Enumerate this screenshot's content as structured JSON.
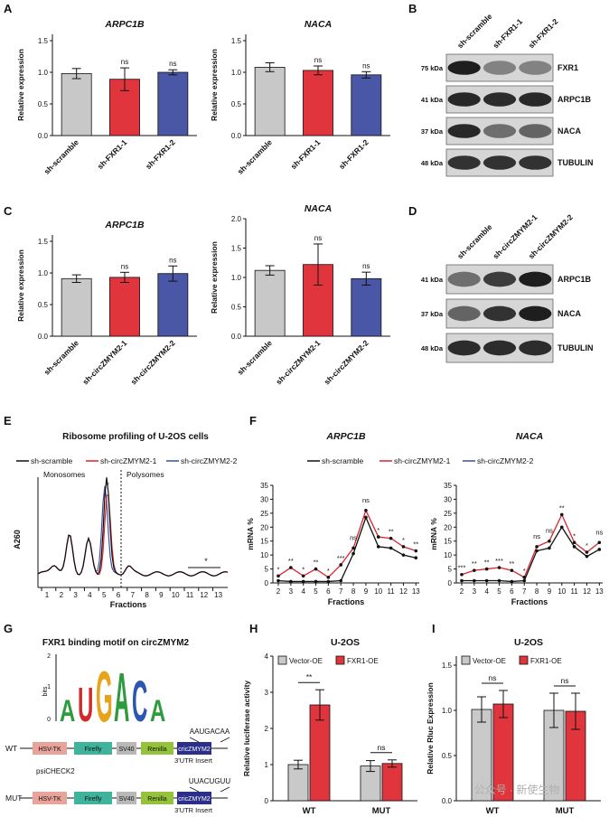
{
  "panel_letters": [
    "A",
    "B",
    "C",
    "D",
    "E",
    "F",
    "G",
    "H",
    "I"
  ],
  "colors": {
    "scramble": "#c8c8c8",
    "sh1": "#e0353d",
    "sh2": "#4a56a6",
    "line_black": "#111111",
    "line_red": "#d9262e",
    "line_blue": "#3f4fa0",
    "vector": "#c9c9c9",
    "fxr1oe": "#e0353d"
  },
  "panelA": {
    "ylabel": "Relative expression",
    "categories": [
      "sh-scramble",
      "sh-FXR1-1",
      "sh-FXR1-2"
    ],
    "arpc1b": {
      "title": "ARPC1B",
      "values": [
        0.98,
        0.89,
        1.0
      ],
      "errors": [
        0.08,
        0.18,
        0.04
      ],
      "sig": [
        "",
        "ns",
        "ns"
      ]
    },
    "naca": {
      "title": "NACA",
      "values": [
        1.08,
        1.03,
        0.96
      ],
      "errors": [
        0.07,
        0.07,
        0.05
      ],
      "sig": [
        "",
        "ns",
        "ns"
      ]
    },
    "yticks": [
      "0.0",
      "0.5",
      "1.0",
      "1.5"
    ]
  },
  "panelB": {
    "lanes": [
      "sh-scramble",
      "sh-FXR1-1",
      "sh-FXR1-2"
    ],
    "bands": [
      {
        "kda": "75 kDa",
        "name": "FXR1"
      },
      {
        "kda": "41 kDa",
        "name": "ARPC1B"
      },
      {
        "kda": "37 kDa",
        "name": "NACA"
      },
      {
        "kda": "48 kDa",
        "name": "TUBULIN"
      }
    ]
  },
  "panelC": {
    "ylabel": "Relative expression",
    "categories": [
      "sh-scramble",
      "sh-circZMYM2-1",
      "sh-circZMYM2-2"
    ],
    "arpc1b": {
      "title": "ARPC1B",
      "values": [
        0.91,
        0.93,
        0.99
      ],
      "errors": [
        0.06,
        0.08,
        0.12
      ],
      "sig": [
        "",
        "ns",
        "ns"
      ],
      "yticks": [
        "0.0",
        "0.5",
        "1.0",
        "1.5"
      ]
    },
    "naca": {
      "title": "NACA",
      "values": [
        1.12,
        1.22,
        0.98
      ],
      "errors": [
        0.08,
        0.35,
        0.11
      ],
      "sig": [
        "",
        "ns",
        "ns"
      ],
      "yticks": [
        "0.0",
        "0.5",
        "1.0",
        "1.5",
        "2.0"
      ]
    }
  },
  "panelD": {
    "lanes": [
      "sh-scramble",
      "sh-circZMYM2-1",
      "sh-circZMYM2-2"
    ],
    "bands": [
      {
        "kda": "41 kDa",
        "name": "ARPC1B"
      },
      {
        "kda": "37 kDa",
        "name": "NACA"
      },
      {
        "kda": "48 kDa",
        "name": "TUBULIN"
      }
    ]
  },
  "panelE": {
    "title": "Ribosome profiling of U-2OS cells",
    "legend": [
      "sh-scramble",
      "sh-circZMYM2-1",
      "sh-circZMYM2-2"
    ],
    "monosomes": "Monosomes",
    "polysomes": "Polysomes",
    "ylabel": "A260",
    "xlabel": "Fractions",
    "fractions": [
      "1",
      "2",
      "3",
      "4",
      "5",
      "6",
      "7",
      "8",
      "9",
      "10",
      "11",
      "12",
      "13"
    ],
    "star": "*"
  },
  "panelF": {
    "legend": [
      "sh-scramble",
      "sh-circZMYM2-1",
      "sh-circZMYM2-2"
    ],
    "ylabel": "mRNA %",
    "xlabel": "Fractions",
    "x": [
      "2",
      "3",
      "4",
      "5",
      "6",
      "7",
      "8",
      "9",
      "10",
      "11",
      "12",
      "13"
    ],
    "yticks": [
      "0",
      "5",
      "10",
      "15",
      "20",
      "25",
      "30",
      "35"
    ],
    "arpc1b": {
      "title": "ARPC1B",
      "scramble": [
        0.8,
        0.5,
        0.5,
        0.5,
        0.5,
        0.8,
        10.5,
        23.5,
        13.0,
        12.5,
        10.0,
        9.0
      ],
      "circ1": [
        2.5,
        5.5,
        2.5,
        5.0,
        2.0,
        6.5,
        12.5,
        26.0,
        16.5,
        16.0,
        13.0,
        11.5
      ],
      "sig": [
        "*",
        "**",
        "*",
        "**",
        "*",
        "***",
        "ns",
        "ns",
        "*",
        "**",
        "*",
        "**"
      ]
    },
    "naca": {
      "title": "NACA",
      "scramble": [
        0.8,
        0.8,
        0.8,
        0.8,
        0.5,
        0.8,
        11.5,
        12.5,
        20.0,
        13.0,
        9.5,
        12.0
      ],
      "circ1": [
        3.0,
        4.5,
        5.0,
        5.5,
        4.5,
        2.0,
        13.0,
        15.0,
        24.5,
        14.5,
        11.0,
        14.5
      ],
      "sig": [
        "***",
        "**",
        "**",
        "***",
        "**",
        "*",
        "ns",
        "ns",
        "**",
        "*",
        "*",
        "ns"
      ]
    }
  },
  "panelG": {
    "title": "FXR1 binding motif on circZMYM2",
    "bits": "bits",
    "logo_letters": [
      "A",
      "U",
      "G",
      "A",
      "C",
      "A"
    ],
    "wt_seq": "AAUGACAA",
    "mut_seq": "UUACUGUU",
    "rows": [
      {
        "label": "WT"
      },
      {
        "label": "MUT"
      }
    ],
    "boxes": [
      "HSV-TK",
      "Firefly",
      "SV40",
      "Renilla",
      "cricZMYM2"
    ],
    "psicheck": "psiCHECK2",
    "utr": "3'UTR Insert"
  },
  "panelH": {
    "title": "U-2OS",
    "ylabel": "Relative luciferase activity",
    "legend": [
      "Vector-OE",
      "FXR1-OE"
    ],
    "groups": [
      "WT",
      "MUT"
    ],
    "vector": [
      1.0,
      0.96
    ],
    "vector_err": [
      0.12,
      0.15
    ],
    "fxr1": [
      2.65,
      1.03
    ],
    "fxr1_err": [
      0.42,
      0.1
    ],
    "sig": [
      "**",
      "ns"
    ],
    "yticks": [
      "0",
      "1",
      "2",
      "3",
      "4"
    ]
  },
  "panelI": {
    "title": "U-2OS",
    "ylabel": "Relative Rluc Expression",
    "legend": [
      "Vector-OE",
      "FXR1-OE"
    ],
    "groups": [
      "WT",
      "MUT"
    ],
    "vector": [
      1.01,
      1.0
    ],
    "vector_err": [
      0.14,
      0.19
    ],
    "fxr1": [
      1.07,
      0.99
    ],
    "fxr1_err": [
      0.15,
      0.2
    ],
    "sig": [
      "ns",
      "ns"
    ],
    "yticks": [
      "0.0",
      "0.5",
      "1.0",
      "1.5"
    ]
  },
  "watermark": "公众号 · 新使生物"
}
